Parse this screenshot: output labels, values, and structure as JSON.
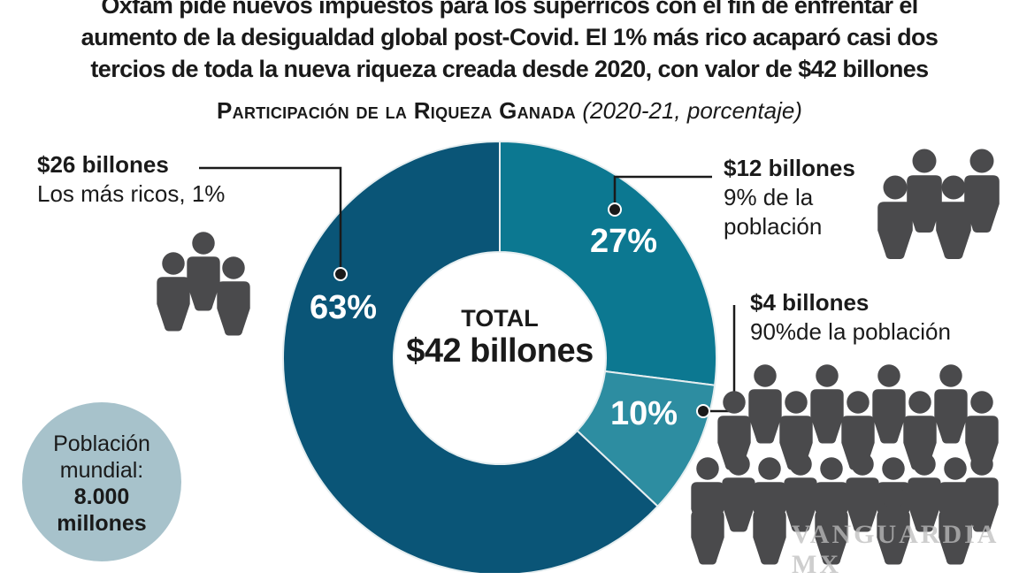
{
  "headline": [
    "Oxfam pide nuevos impuestos para los superricos con el fin de enfrentar el",
    "aumento de la desigualdad global post-Covid. El 1% más rico acaparó casi dos",
    "tercios de toda la nueva riqueza creada desde 2020, con valor de $42 billones"
  ],
  "subtitle": {
    "main": "Participación de la Riqueza Ganada",
    "note": "(2020-21, porcentaje)"
  },
  "chart_data": {
    "type": "pie",
    "donut": true,
    "title": "Participación de la Riqueza Ganada (2020-21, porcentaje)",
    "center": {
      "line1": "TOTAL",
      "line2": "$42 billones"
    },
    "slices": [
      {
        "value": 27,
        "label": "27%",
        "amount": "$12 billones",
        "desc": [
          "9% de la",
          "población"
        ],
        "color": "#0c7891"
      },
      {
        "value": 10,
        "label": "10%",
        "amount": "$4 billones",
        "desc": [
          "90%de la población"
        ],
        "color": "#2d8da1"
      },
      {
        "value": 63,
        "label": "63%",
        "amount": "$26 billones",
        "desc": [
          "Los más ricos, 1%"
        ],
        "color": "#0a5577"
      }
    ]
  },
  "population": {
    "line1": "Población",
    "line2": "mundial:",
    "line3": "8.000",
    "line4": "millones"
  },
  "icons": {
    "people": "person-icon"
  },
  "watermark": "VANGUARDIA MX"
}
